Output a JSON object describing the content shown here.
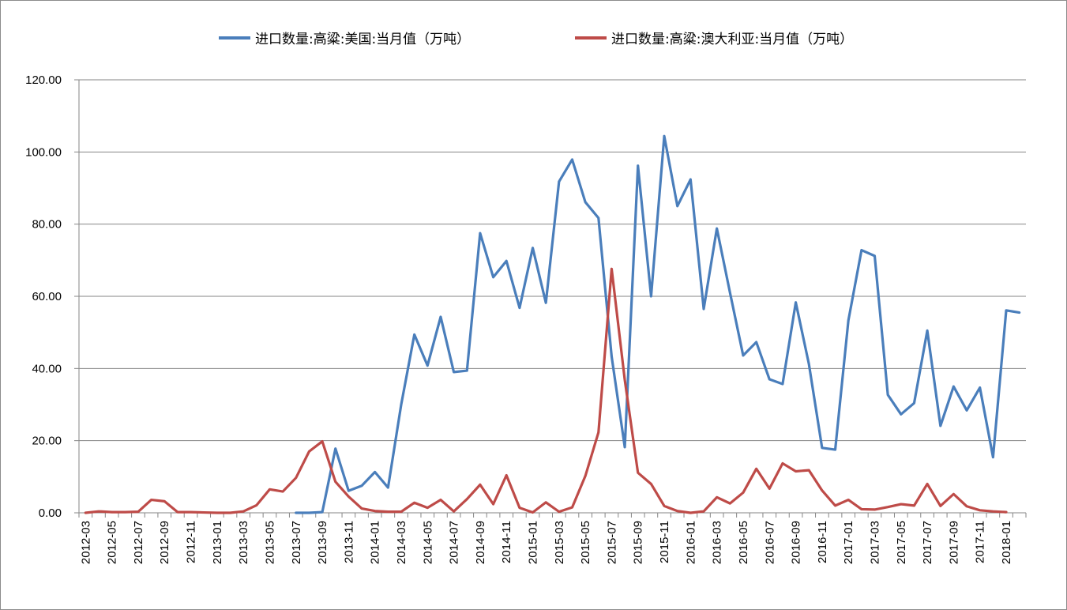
{
  "chart_data": {
    "type": "line",
    "title": "",
    "xlabel": "",
    "ylabel": "",
    "ylim": [
      0,
      120
    ],
    "yticks": [
      "0.00",
      "20.00",
      "40.00",
      "60.00",
      "80.00",
      "100.00",
      "120.00"
    ],
    "grid": true,
    "legend_position": "top",
    "x": [
      "2012-03",
      "2012-04",
      "2012-05",
      "2012-06",
      "2012-07",
      "2012-08",
      "2012-09",
      "2012-10",
      "2012-11",
      "2012-12",
      "2013-01",
      "2013-02",
      "2013-03",
      "2013-04",
      "2013-05",
      "2013-06",
      "2013-07",
      "2013-08",
      "2013-09",
      "2013-10",
      "2013-11",
      "2013-12",
      "2014-01",
      "2014-02",
      "2014-03",
      "2014-04",
      "2014-05",
      "2014-06",
      "2014-07",
      "2014-08",
      "2014-09",
      "2014-10",
      "2014-11",
      "2014-12",
      "2015-01",
      "2015-02",
      "2015-03",
      "2015-04",
      "2015-05",
      "2015-06",
      "2015-07",
      "2015-08",
      "2015-09",
      "2015-10",
      "2015-11",
      "2015-12",
      "2016-01",
      "2016-02",
      "2016-03",
      "2016-04",
      "2016-05",
      "2016-06",
      "2016-07",
      "2016-08",
      "2016-09",
      "2016-10",
      "2016-11",
      "2016-12",
      "2017-01",
      "2017-02",
      "2017-03",
      "2017-04",
      "2017-05",
      "2017-06",
      "2017-07",
      "2017-08",
      "2017-09",
      "2017-10",
      "2017-11",
      "2017-12",
      "2018-01",
      "2018-02"
    ],
    "xticks": [
      "2012-03",
      "2012-05",
      "2012-07",
      "2012-09",
      "2012-11",
      "2013-01",
      "2013-03",
      "2013-05",
      "2013-07",
      "2013-09",
      "2013-11",
      "2014-01",
      "2014-03",
      "2014-05",
      "2014-07",
      "2014-09",
      "2014-11",
      "2015-01",
      "2015-03",
      "2015-05",
      "2015-07",
      "2015-09",
      "2015-11",
      "2016-01",
      "2016-03",
      "2016-05",
      "2016-07",
      "2016-09",
      "2016-11",
      "2017-01",
      "2017-03",
      "2017-05",
      "2017-07",
      "2017-09",
      "2017-11",
      "2018-01"
    ],
    "series": [
      {
        "name": "进口数量:高粱:美国:当月值（万吨）",
        "color": "#4a7ebb",
        "values": [
          null,
          null,
          null,
          null,
          null,
          null,
          null,
          null,
          null,
          null,
          null,
          null,
          null,
          null,
          null,
          null,
          0.0,
          0.0,
          0.2,
          17.8,
          6.1,
          7.5,
          11.3,
          7.0,
          30.0,
          49.4,
          40.8,
          54.3,
          39.0,
          39.4,
          77.5,
          65.3,
          69.8,
          56.8,
          73.4,
          58.2,
          91.8,
          97.9,
          86.1,
          81.7,
          43.3,
          18.2,
          96.2,
          60.0,
          104.4,
          85.0,
          92.4,
          56.5,
          78.8,
          61.0,
          43.6,
          47.3,
          37.0,
          35.7,
          58.3,
          41.2,
          18.0,
          17.5,
          53.3,
          72.8,
          71.2,
          32.7,
          27.3,
          30.4,
          50.5,
          24.1,
          35.0,
          28.4,
          34.7,
          15.4,
          56.1,
          55.5
        ]
      },
      {
        "name": "进口数量:高粱:澳大利亚:当月值（万吨）",
        "color": "#be4b48",
        "values": [
          0.0,
          0.4,
          0.2,
          0.2,
          0.3,
          3.6,
          3.2,
          0.2,
          0.2,
          0.1,
          0.0,
          0.0,
          0.4,
          2.1,
          6.5,
          5.9,
          9.7,
          17.0,
          19.8,
          8.6,
          4.5,
          1.2,
          0.5,
          0.3,
          0.3,
          2.8,
          1.4,
          3.6,
          0.4,
          3.8,
          7.8,
          2.4,
          10.4,
          1.4,
          0.1,
          2.9,
          0.3,
          1.5,
          10.2,
          22.3,
          67.6,
          36.8,
          11.1,
          8.0,
          1.9,
          0.5,
          0.0,
          0.4,
          4.3,
          2.6,
          5.6,
          12.2,
          6.7,
          13.7,
          11.5,
          11.8,
          6.2,
          2.0,
          3.6,
          1.0,
          0.9,
          1.6,
          2.4,
          2.0,
          8.0,
          1.9,
          5.2,
          1.8,
          0.7,
          0.4,
          0.2,
          null
        ]
      }
    ]
  }
}
